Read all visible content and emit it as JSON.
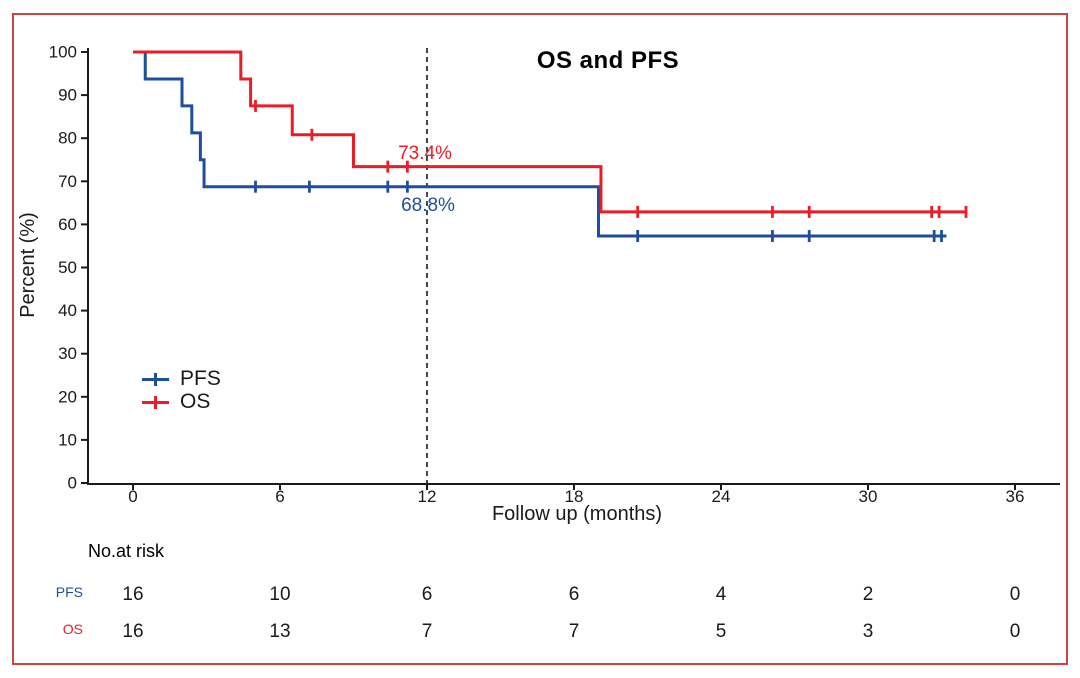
{
  "colors": {
    "pfs_blue": "#1e4e9c",
    "os_red": "#ec1c24",
    "frame_red": "#cc4444",
    "axis_black": "#1a1a1a"
  },
  "chart_data": {
    "type": "line",
    "subtype": "kaplan-meier-step",
    "title": "OS and PFS",
    "xlabel": "Follow up (months)",
    "ylabel": "Percent (%)",
    "xlim": [
      0,
      36
    ],
    "ylim": [
      0,
      100
    ],
    "xticks": [
      0,
      6,
      12,
      18,
      24,
      30,
      36
    ],
    "yticks": [
      0,
      10,
      20,
      30,
      40,
      50,
      60,
      70,
      80,
      90,
      100
    ],
    "grid": false,
    "legend_position": "inside-left-middle",
    "reference_line_x": 12,
    "series": [
      {
        "name": "PFS",
        "color": "#1e4e9c",
        "steps": [
          [
            0,
            100
          ],
          [
            0.5,
            93.75
          ],
          [
            2.0,
            87.5
          ],
          [
            2.4,
            81.25
          ],
          [
            2.75,
            75
          ],
          [
            2.9,
            68.75
          ],
          [
            19.0,
            57.3
          ],
          [
            33.2,
            57.3
          ]
        ],
        "censors": [
          [
            5.0,
            68.75
          ],
          [
            7.2,
            68.75
          ],
          [
            10.4,
            68.75
          ],
          [
            11.2,
            68.75
          ],
          [
            20.6,
            57.3
          ],
          [
            26.1,
            57.3
          ],
          [
            27.6,
            57.3
          ],
          [
            32.7,
            57.3
          ],
          [
            33.0,
            57.3
          ]
        ],
        "annotation": {
          "text": "68.8%",
          "x": 12,
          "y": 63.5
        }
      },
      {
        "name": "OS",
        "color": "#ec1c24",
        "steps": [
          [
            0,
            100
          ],
          [
            4.4,
            93.75
          ],
          [
            4.8,
            87.5
          ],
          [
            6.5,
            80.8
          ],
          [
            9.0,
            73.4
          ],
          [
            19.1,
            62.9
          ],
          [
            34.0,
            62.9
          ]
        ],
        "censors": [
          [
            5.0,
            87.5
          ],
          [
            7.3,
            80.8
          ],
          [
            10.4,
            73.4
          ],
          [
            11.2,
            73.4
          ],
          [
            20.6,
            62.9
          ],
          [
            26.1,
            62.9
          ],
          [
            27.6,
            62.9
          ],
          [
            32.6,
            62.9
          ],
          [
            32.9,
            62.9
          ],
          [
            34.0,
            62.9
          ]
        ],
        "annotation": {
          "text": "73.4%",
          "x": 12,
          "y": 76
        }
      }
    ]
  },
  "risk_table": {
    "header": "No.at risk",
    "times": [
      0,
      6,
      12,
      18,
      24,
      30,
      36
    ],
    "rows": [
      {
        "label": "PFS",
        "color": "#1e4e9c",
        "values": [
          16,
          10,
          6,
          6,
          4,
          2,
          0
        ]
      },
      {
        "label": "OS",
        "color": "#ec1c24",
        "values": [
          16,
          13,
          7,
          7,
          5,
          3,
          0
        ]
      }
    ]
  }
}
